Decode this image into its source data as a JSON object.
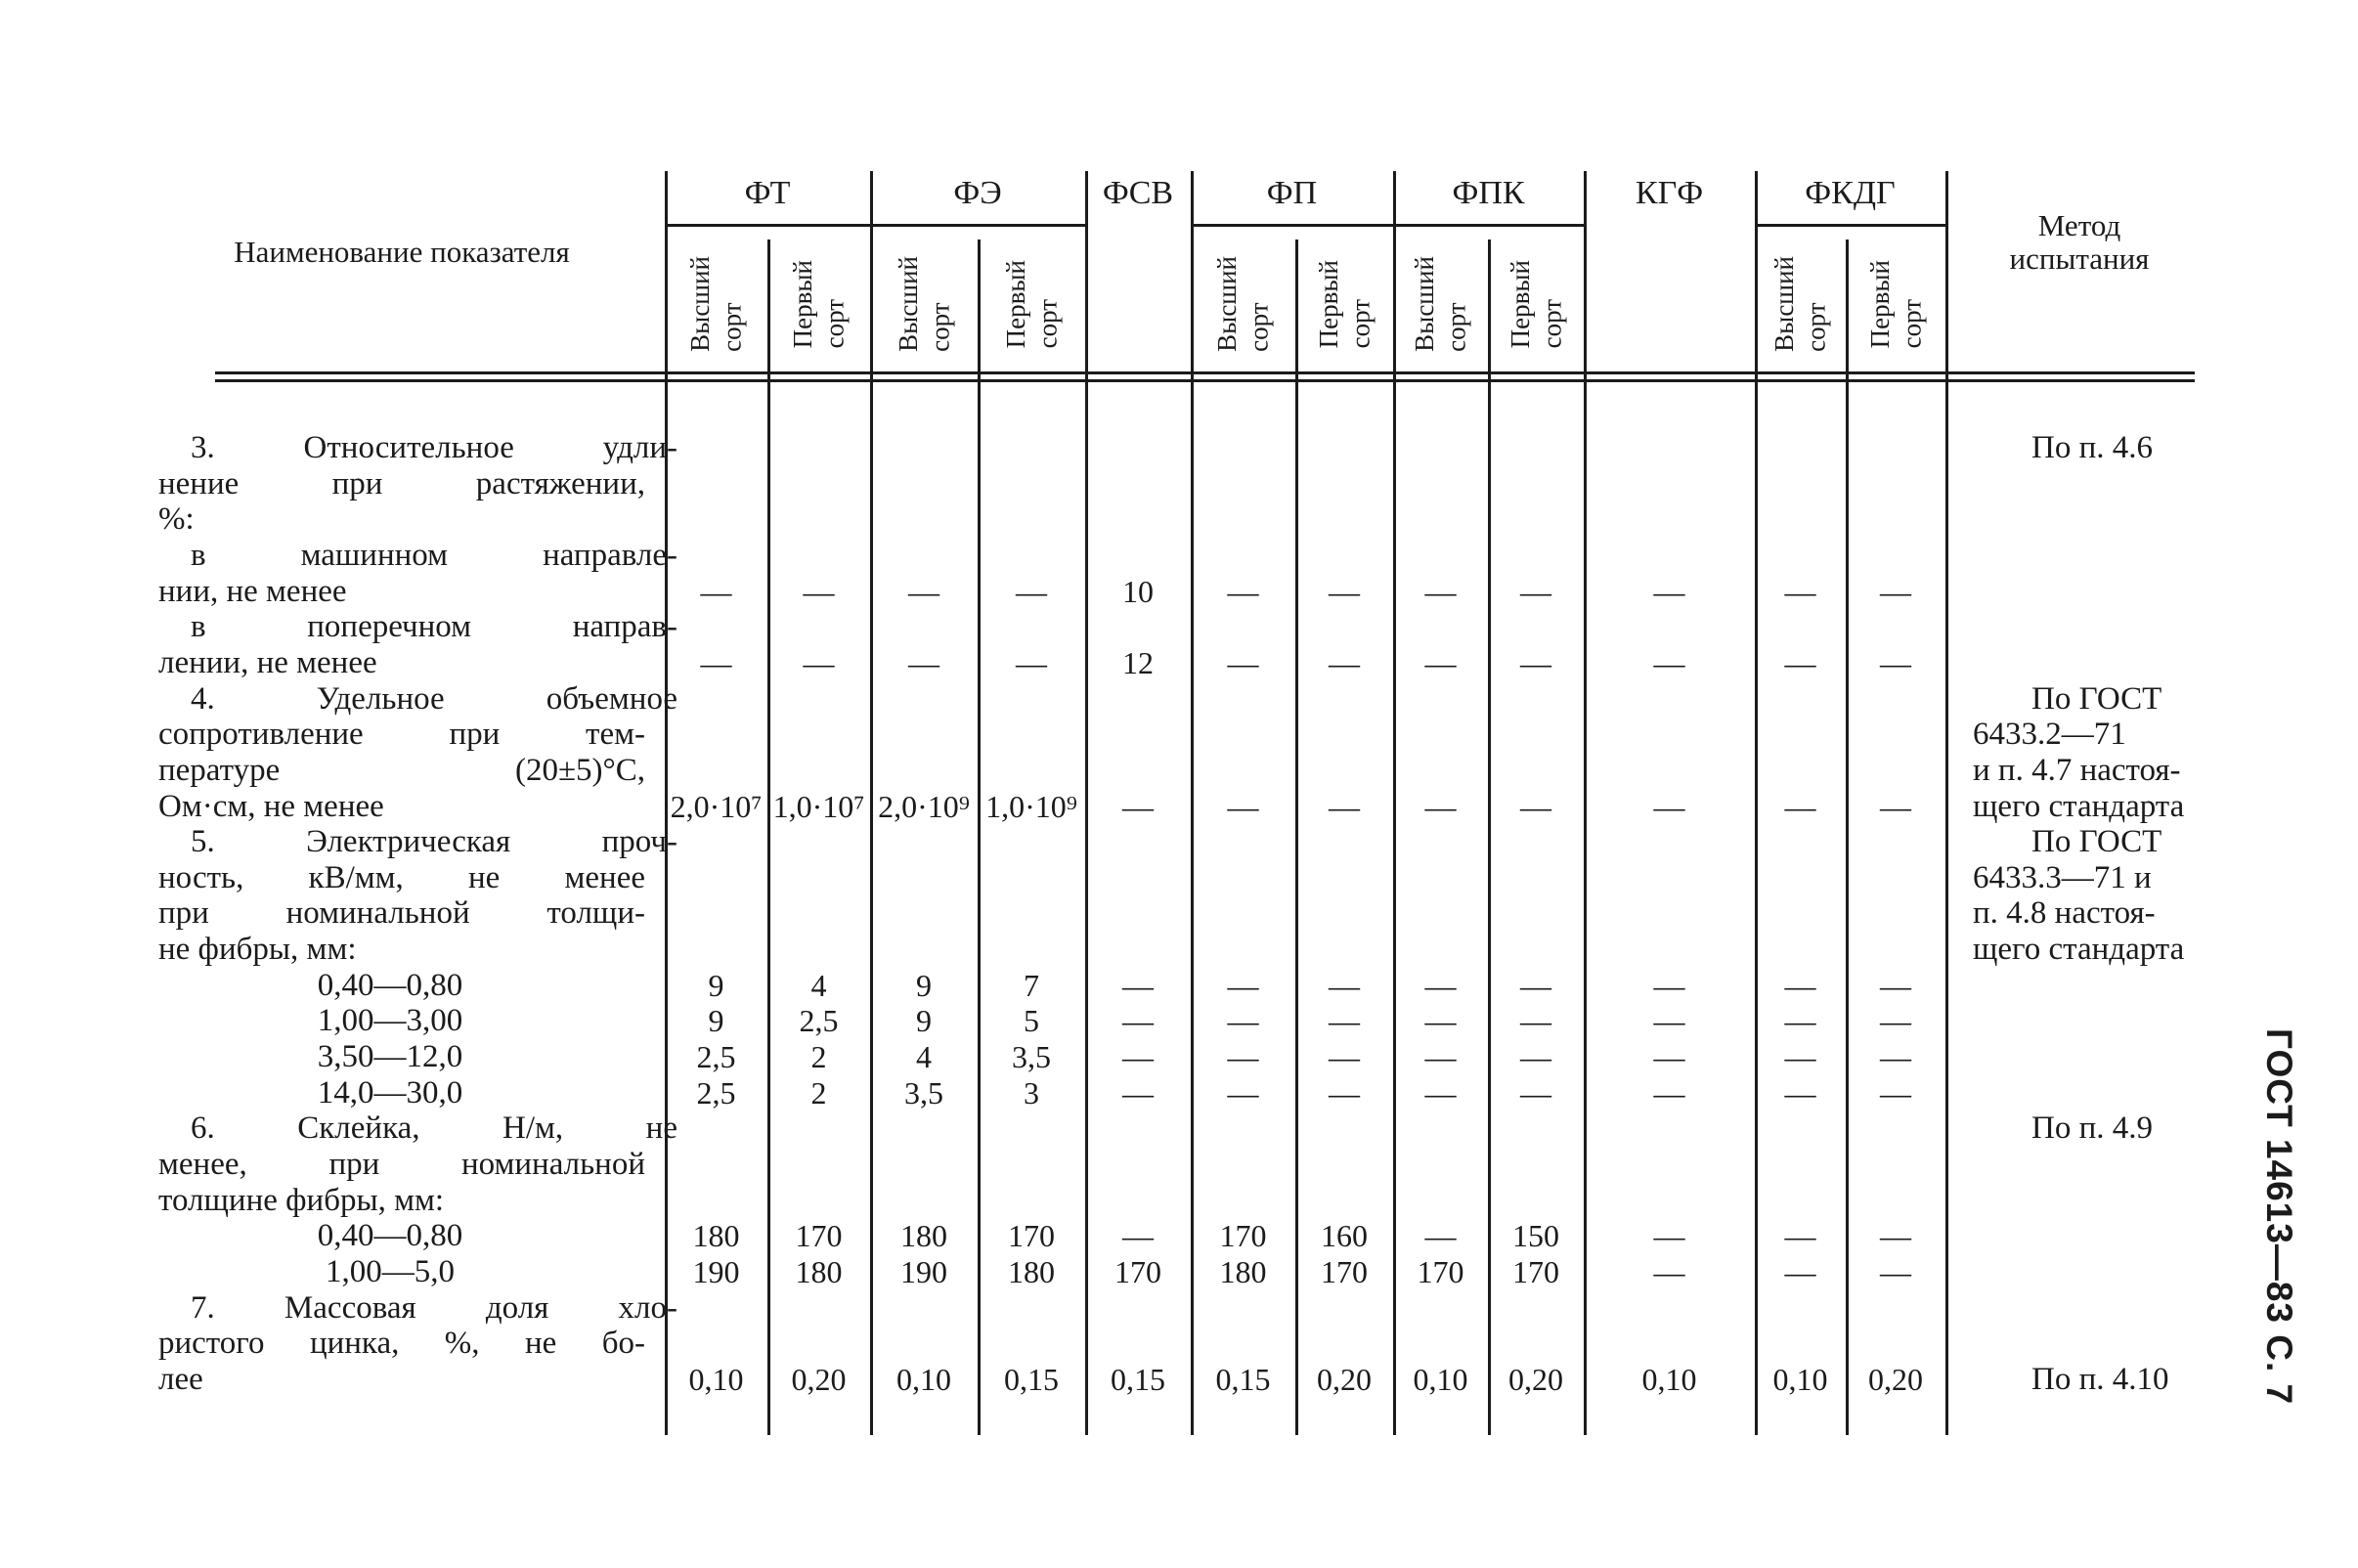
{
  "page": {
    "side_label": "ГОСТ 14613—83 С. 7",
    "colors": {
      "ink": "#1b1b1b",
      "paper": "#ffffff"
    }
  },
  "table": {
    "name_header": "Наименование показателя",
    "method_header": [
      "Метод",
      "испытания"
    ],
    "groups": [
      {
        "label": "ФТ",
        "subs": [
          "Высший сорт",
          "Первый сорт"
        ]
      },
      {
        "label": "ФЭ",
        "subs": [
          "Высший сорт",
          "Первый сорт"
        ]
      },
      {
        "label": "ФСВ",
        "subs": []
      },
      {
        "label": "ФП",
        "subs": [
          "Высший сорт",
          "Первый сорт"
        ]
      },
      {
        "label": "ФПК",
        "subs": [
          "Высший сорт",
          "Первый сорт"
        ]
      },
      {
        "label": "КГФ",
        "subs": []
      },
      {
        "label": "ФКДГ",
        "subs": [
          "Высший сорт",
          "Первый сорт"
        ]
      }
    ],
    "lines": [
      {
        "label": "3. Относительное удли-",
        "la": "pj",
        "method": "По п. 4.6",
        "ma": "indent"
      },
      {
        "label": "нение при растяжении,",
        "la": "j"
      },
      {
        "label": "%:",
        "la": "p"
      },
      {
        "label": "в машинном направле-",
        "la": "pj"
      },
      {
        "label": "нии, не менее",
        "la": "p",
        "cells": [
          "—",
          "—",
          "—",
          "—",
          "10",
          "—",
          "—",
          "—",
          "—",
          "—",
          "—",
          "—"
        ]
      },
      {
        "label": "в поперечном направ-",
        "la": "pj"
      },
      {
        "label": "лении, не менее",
        "la": "p",
        "cells": [
          "—",
          "—",
          "—",
          "—",
          "12",
          "—",
          "—",
          "—",
          "—",
          "—",
          "—",
          "—"
        ]
      },
      {
        "label": "4. Удельное объемное",
        "la": "pj",
        "method": "По ГОСТ",
        "ma": "indent"
      },
      {
        "label": "сопротивление при тем-",
        "la": "j",
        "method": "6433.2—71",
        "ma": "left"
      },
      {
        "label": "пературе (20±5)°С,",
        "la": "j",
        "method": "и п. 4.7 настоя-",
        "ma": "left"
      },
      {
        "label": "Ом·см, не менее",
        "la": "p",
        "cells": [
          "2,0·10⁷",
          "1,0·10⁷",
          "2,0·10⁹",
          "1,0·10⁹",
          "—",
          "—",
          "—",
          "—",
          "—",
          "—",
          "—",
          "—"
        ],
        "method": "щего стандарта",
        "ma": "left"
      },
      {
        "label": "5. Электрическая проч-",
        "la": "pj",
        "method": "По ГОСТ",
        "ma": "indent"
      },
      {
        "label": "ность, кВ/мм, не менее",
        "la": "j",
        "method": "6433.3—71 и",
        "ma": "left"
      },
      {
        "label": "при номинальной толщи-",
        "la": "j",
        "method": "п. 4.8 настоя-",
        "ma": "left"
      },
      {
        "label": "не фибры, мм:",
        "la": "p",
        "method": "щего стандарта",
        "ma": "left"
      },
      {
        "label": "0,40—0,80",
        "la": "c",
        "cells": [
          "9",
          "4",
          "9",
          "7",
          "—",
          "—",
          "—",
          "—",
          "—",
          "—",
          "—",
          "—"
        ]
      },
      {
        "label": "1,00—3,00",
        "la": "c",
        "cells": [
          "9",
          "2,5",
          "9",
          "5",
          "—",
          "—",
          "—",
          "—",
          "—",
          "—",
          "—",
          "—"
        ]
      },
      {
        "label": "3,50—12,0",
        "la": "c",
        "cells": [
          "2,5",
          "2",
          "4",
          "3,5",
          "—",
          "—",
          "—",
          "—",
          "—",
          "—",
          "—",
          "—"
        ]
      },
      {
        "label": "14,0—30,0",
        "la": "c",
        "cells": [
          "2,5",
          "2",
          "3,5",
          "3",
          "—",
          "—",
          "—",
          "—",
          "—",
          "—",
          "—",
          "—"
        ]
      },
      {
        "label": "6. Склейка, Н/м, не",
        "la": "pj",
        "method": "По п. 4.9",
        "ma": "indent"
      },
      {
        "label": "менее, при номинальной",
        "la": "j"
      },
      {
        "label": "толщине фибры, мм:",
        "la": "p"
      },
      {
        "label": "0,40—0,80",
        "la": "c",
        "cells": [
          "180",
          "170",
          "180",
          "170",
          "—",
          "170",
          "160",
          "—",
          "150",
          "—",
          "—",
          "—"
        ]
      },
      {
        "label": "1,00—5,0",
        "la": "c",
        "cells": [
          "190",
          "180",
          "190",
          "180",
          "170",
          "180",
          "170",
          "170",
          "170",
          "—",
          "—",
          "—"
        ]
      },
      {
        "label": "7. Массовая доля хло-",
        "la": "pj"
      },
      {
        "label": "ристого цинка, %, не бо-",
        "la": "j"
      },
      {
        "label": "лее",
        "la": "p",
        "cells": [
          "0,10",
          "0,20",
          "0,10",
          "0,15",
          "0,15",
          "0,15",
          "0,20",
          "0,10",
          "0,20",
          "0,10",
          "0,10",
          "0,20"
        ],
        "method": "По п. 4.10",
        "ma": "indent"
      }
    ]
  }
}
